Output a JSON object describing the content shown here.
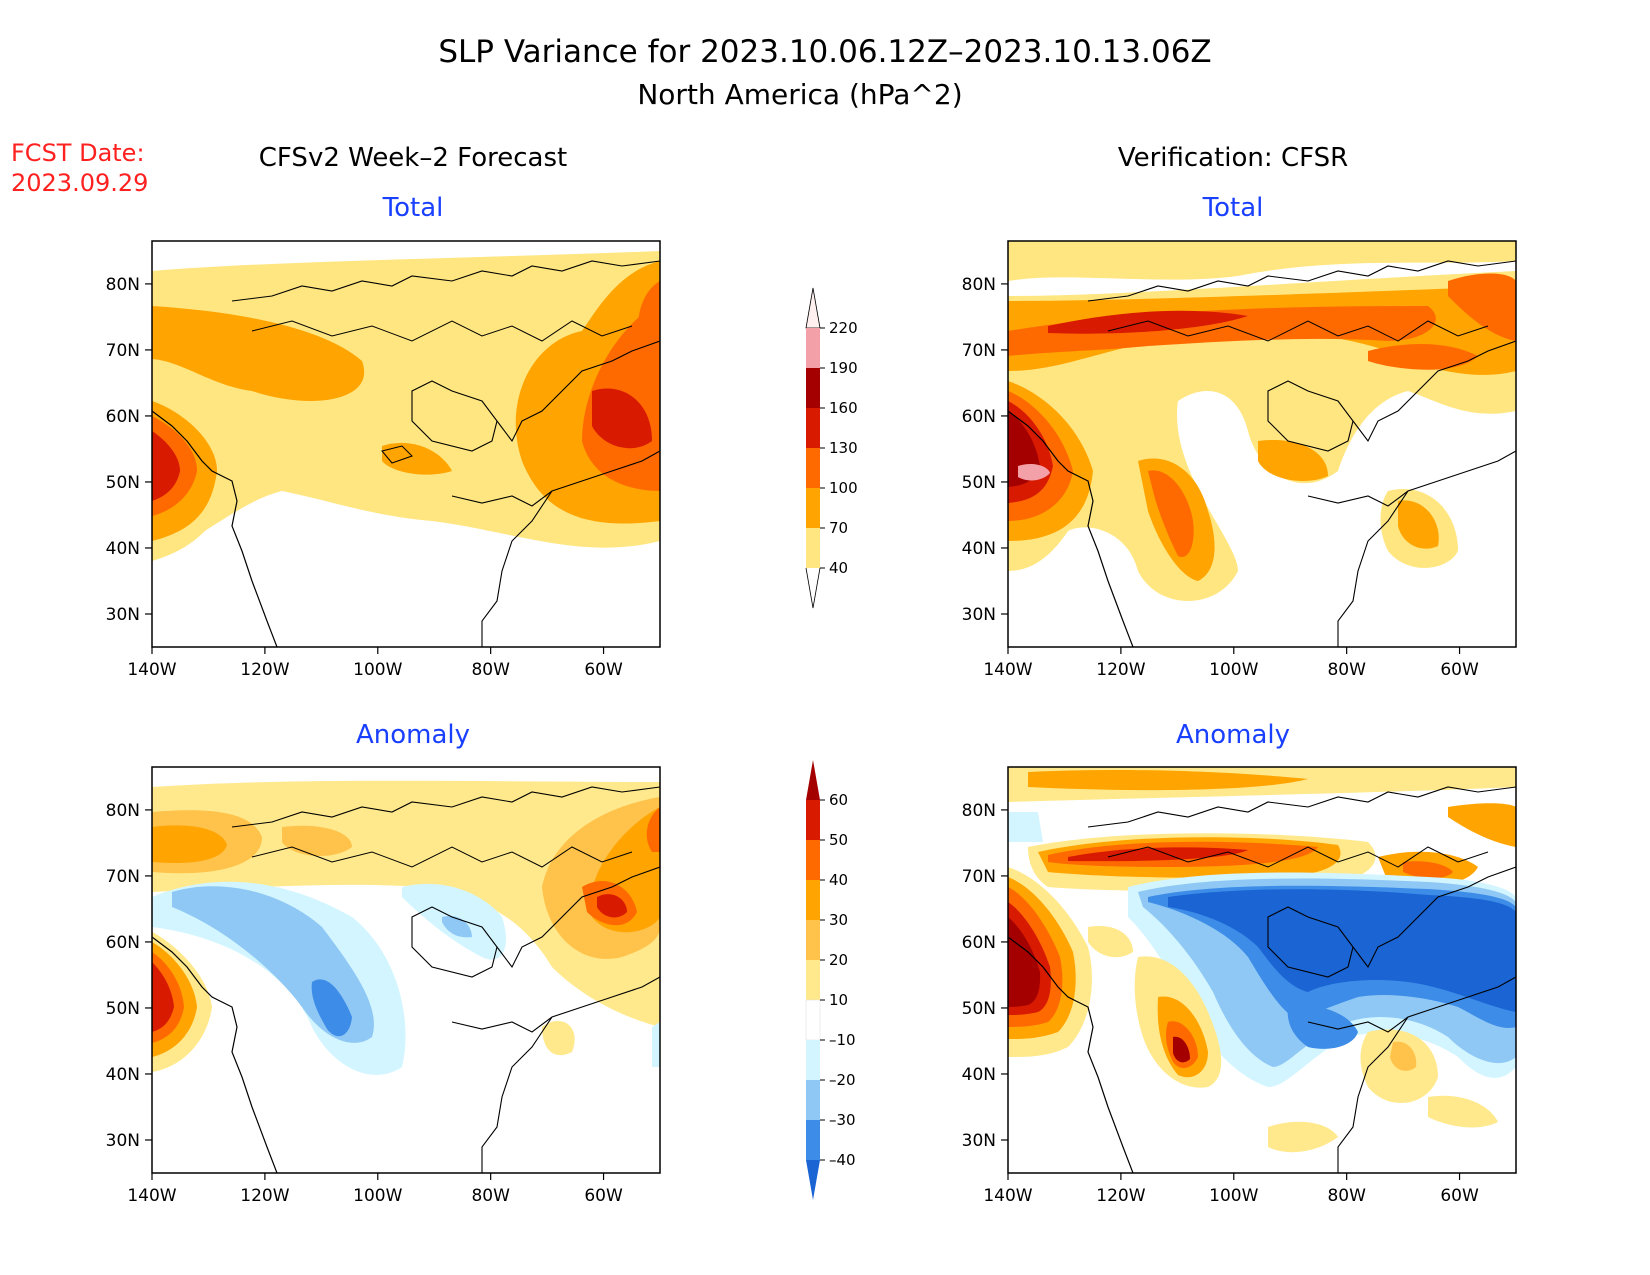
{
  "title": {
    "line1": "SLP Variance for 2023.10.06.12Z–2023.10.13.06Z",
    "line2": "North America (hPa^2)"
  },
  "fcst": {
    "label": "FCST Date:",
    "date": "2023.09.29"
  },
  "columns": {
    "left": "CFSv2 Week–2 Forecast",
    "right": "Verification: CFSR"
  },
  "panels": {
    "forecast_total": {
      "subtitle": "Total"
    },
    "verification_total": {
      "subtitle": "Total"
    },
    "forecast_anomaly": {
      "subtitle": "Anomaly"
    },
    "verification_anomaly": {
      "subtitle": "Anomaly"
    }
  },
  "axes": {
    "lat_ticks": [
      "80N",
      "70N",
      "60N",
      "50N",
      "40N",
      "30N"
    ],
    "lon_ticks": [
      "140W",
      "120W",
      "100W",
      "80W",
      "60W"
    ]
  },
  "colorbars": {
    "total": {
      "labels": [
        "220",
        "190",
        "160",
        "130",
        "100",
        "70",
        "40"
      ],
      "colors": [
        "#fff0f0",
        "#f4a0a8",
        "#a50000",
        "#d81a00",
        "#ff6a00",
        "#ffa400",
        "#ffe680"
      ]
    },
    "anomaly": {
      "labels": [
        "60",
        "50",
        "40",
        "30",
        "20",
        "10",
        "–10",
        "–20",
        "–30",
        "–40"
      ],
      "colors": [
        "#a50000",
        "#d81a00",
        "#ff6a00",
        "#ffa400",
        "#ffc24a",
        "#ffe98c",
        "#ffffff",
        "#d2f5ff",
        "#8fc8f5",
        "#3c8ce8",
        "#1a64d4"
      ]
    }
  },
  "text_color": "#000000",
  "subtitle_color": "#1a40ff",
  "fcst_color": "#ff2020"
}
